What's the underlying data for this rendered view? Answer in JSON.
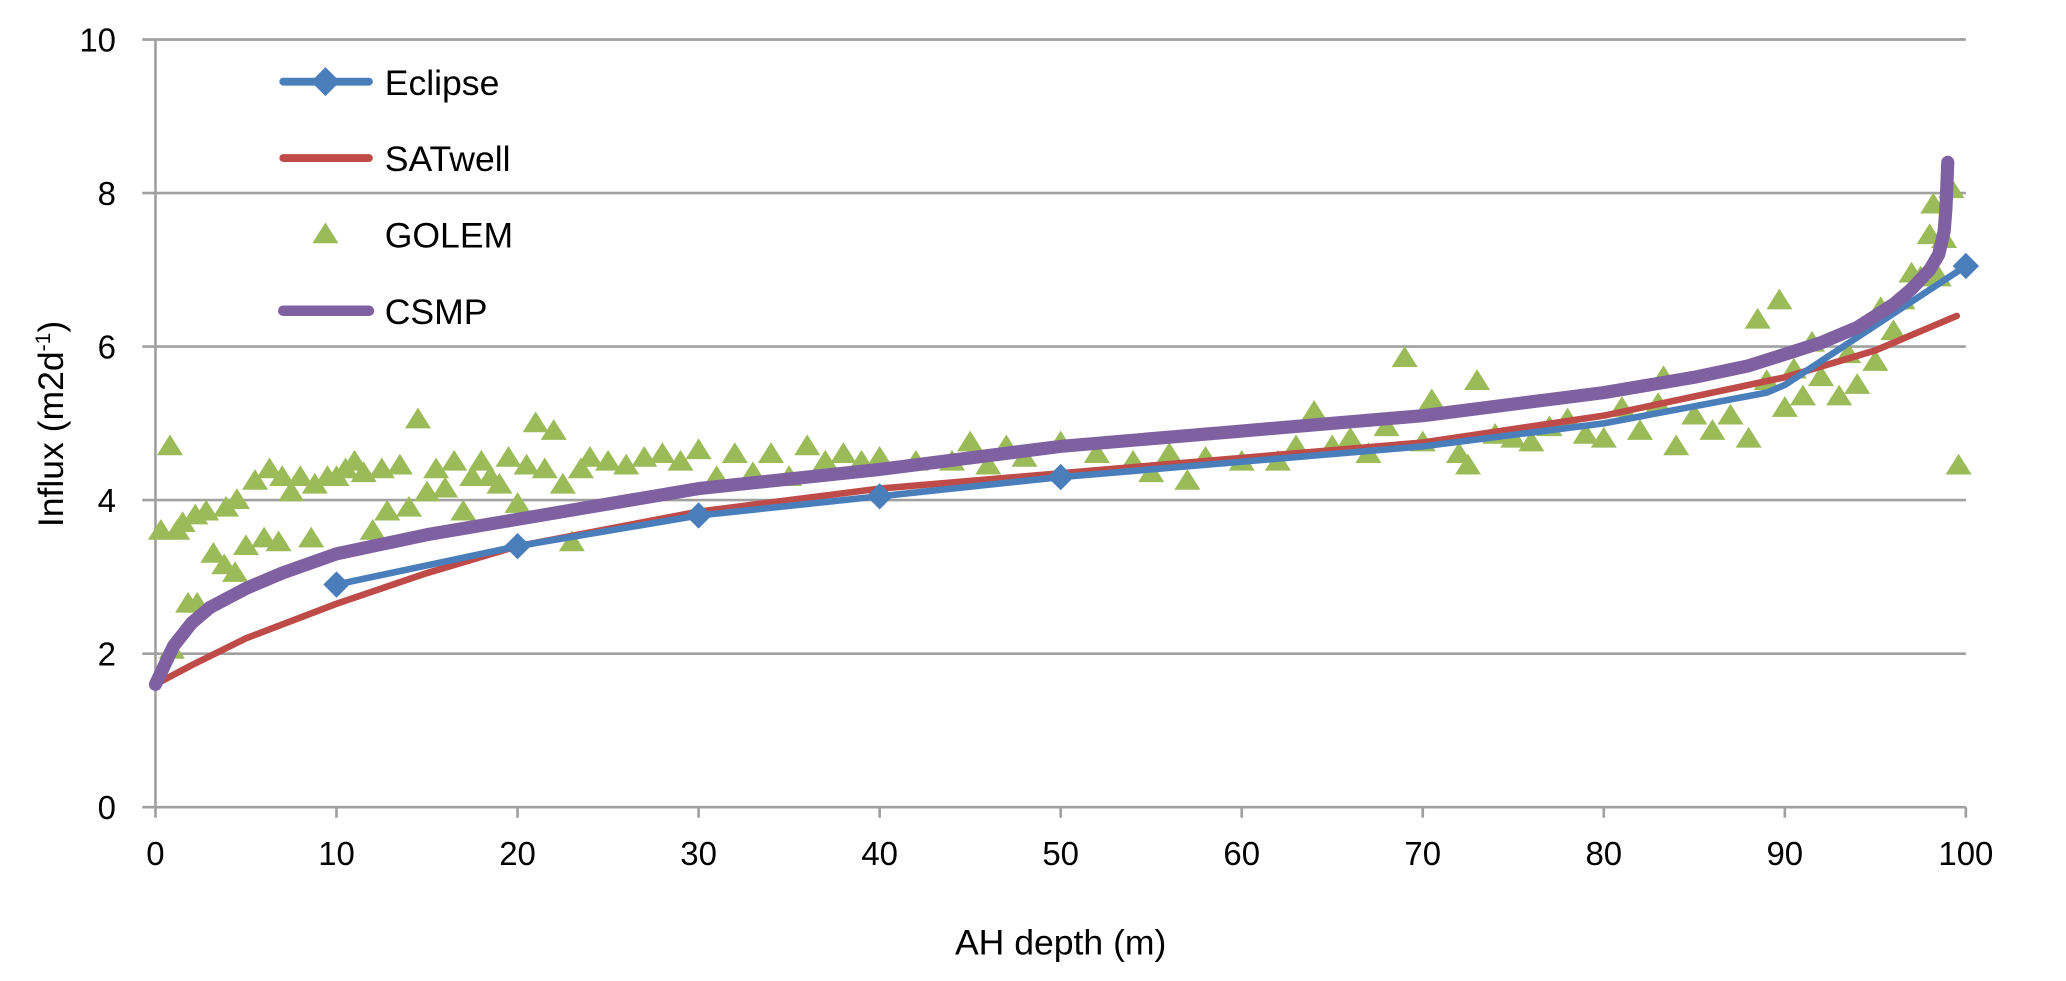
{
  "chart_data": {
    "type": "line",
    "title": "",
    "xlabel": "AH depth (m)",
    "ylabel_main": "Influx (m2d",
    "ylabel_sup": "-1",
    "ylabel_close": ")",
    "xlim": [
      0,
      100
    ],
    "ylim": [
      0,
      10
    ],
    "xticks": [
      "0",
      "10",
      "20",
      "30",
      "40",
      "50",
      "60",
      "70",
      "80",
      "90",
      "100"
    ],
    "yticks": [
      "0",
      "2",
      "4",
      "6",
      "8",
      "10"
    ],
    "grid": "horizontal",
    "legend_position": "top-left",
    "colors": {
      "Eclipse": "#4a7ebb",
      "SATwell": "#be4b48",
      "GOLEM": "#9bbb59",
      "CSMP": "#7f60a0"
    },
    "series": [
      {
        "name": "Eclipse",
        "style": "line-diamond",
        "x": [
          10,
          20,
          30,
          40,
          50,
          60,
          70,
          80,
          89,
          90,
          100
        ],
        "y": [
          2.9,
          3.4,
          3.8,
          4.05,
          4.3,
          4.5,
          4.7,
          5.0,
          5.4,
          5.5,
          7.05
        ]
      },
      {
        "name": "SATwell",
        "style": "line",
        "x": [
          0,
          2,
          5,
          10,
          15,
          20,
          30,
          40,
          50,
          60,
          70,
          80,
          90,
          95,
          99.5
        ],
        "y": [
          1.6,
          1.85,
          2.2,
          2.65,
          3.05,
          3.4,
          3.85,
          4.15,
          4.35,
          4.55,
          4.75,
          5.1,
          5.6,
          5.95,
          6.4
        ]
      },
      {
        "name": "GOLEM",
        "style": "triangle",
        "x": [
          0.3,
          0.8,
          0.9,
          1.2,
          1.5,
          1.8,
          2.3,
          2.2,
          2.8,
          3.2,
          3.8,
          3.9,
          4.4,
          4.5,
          5,
          5.5,
          6,
          6.3,
          6.8,
          7,
          7.5,
          8,
          8.6,
          8.8,
          9.5,
          10,
          10.5,
          11,
          11.5,
          12,
          12.5,
          12.8,
          13.5,
          14,
          14.5,
          15,
          15.5,
          16,
          16.5,
          17,
          17.5,
          18,
          18.5,
          19,
          19.5,
          20,
          20.5,
          21,
          21.5,
          22,
          22.5,
          23,
          23.5,
          24,
          25,
          26,
          27,
          28,
          29,
          30,
          31,
          32,
          33,
          34,
          35,
          36,
          37,
          38,
          39,
          40,
          42,
          44,
          45,
          46,
          47,
          48,
          50,
          52,
          54,
          55,
          56,
          57,
          58,
          60,
          62,
          63,
          64,
          65,
          66,
          67,
          68,
          69,
          70,
          70.5,
          72,
          72.5,
          73,
          74,
          75,
          76,
          77,
          78,
          79,
          80,
          81,
          82,
          83,
          83.3,
          84,
          85,
          86,
          87,
          88,
          88.5,
          89,
          89.7,
          90,
          90.5,
          91,
          91.5,
          92,
          93,
          93.5,
          94,
          95,
          95.3,
          96,
          96.5,
          97,
          97.5,
          98,
          98.2,
          98.5,
          98.8,
          99.2,
          99.6
        ],
        "y": [
          3.6,
          4.7,
          2.05,
          3.6,
          3.7,
          2.65,
          2.65,
          3.8,
          3.85,
          3.3,
          3.15,
          3.9,
          3.05,
          4.0,
          3.4,
          4.25,
          3.5,
          4.4,
          3.45,
          4.3,
          4.1,
          4.3,
          3.5,
          4.2,
          4.3,
          4.3,
          4.4,
          4.5,
          4.35,
          3.6,
          4.4,
          3.85,
          4.45,
          3.9,
          5.05,
          4.1,
          4.4,
          4.15,
          4.5,
          3.85,
          4.3,
          4.5,
          4.3,
          4.2,
          4.55,
          3.95,
          4.45,
          5.0,
          4.4,
          4.9,
          4.2,
          3.45,
          4.4,
          4.55,
          4.5,
          4.45,
          4.55,
          4.6,
          4.5,
          4.65,
          4.3,
          4.6,
          4.35,
          4.6,
          4.3,
          4.7,
          4.5,
          4.6,
          4.5,
          4.55,
          4.5,
          4.5,
          4.75,
          4.45,
          4.7,
          4.55,
          4.75,
          4.6,
          4.5,
          4.35,
          4.6,
          4.25,
          4.55,
          4.5,
          4.5,
          4.7,
          5.15,
          4.7,
          4.8,
          4.6,
          4.95,
          5.85,
          4.75,
          5.3,
          4.6,
          4.45,
          5.55,
          4.85,
          4.8,
          4.75,
          4.95,
          5.05,
          4.85,
          4.8,
          5.2,
          4.9,
          5.25,
          5.6,
          4.7,
          5.1,
          4.9,
          5.1,
          4.8,
          6.35,
          5.55,
          6.6,
          5.2,
          5.7,
          5.35,
          6.05,
          5.6,
          5.35,
          5.9,
          5.5,
          5.8,
          6.5,
          6.2,
          6.6,
          6.95,
          6.9,
          7.45,
          7.85,
          6.9,
          7.4,
          8.05,
          4.45
        ]
      },
      {
        "name": "CSMP",
        "style": "line-thick",
        "x": [
          0,
          0.5,
          1,
          2,
          3,
          5,
          7,
          10,
          15,
          20,
          30,
          40,
          50,
          60,
          70,
          80,
          85,
          88,
          90,
          92,
          94,
          95,
          96,
          97,
          98,
          98.5,
          98.8,
          98.9,
          99
        ],
        "y": [
          1.6,
          1.85,
          2.1,
          2.4,
          2.6,
          2.85,
          3.05,
          3.3,
          3.55,
          3.75,
          4.15,
          4.4,
          4.7,
          4.9,
          5.1,
          5.4,
          5.6,
          5.75,
          5.9,
          6.05,
          6.25,
          6.4,
          6.55,
          6.75,
          7.0,
          7.2,
          7.5,
          7.8,
          8.4
        ]
      }
    ]
  }
}
